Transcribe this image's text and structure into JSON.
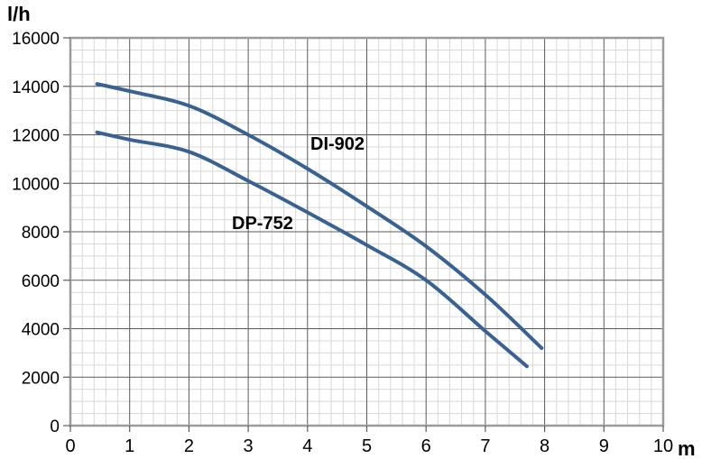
{
  "chart_data": {
    "type": "line",
    "title": "",
    "ylabel": "l/h",
    "xlabel": "m",
    "xlim": [
      0,
      10
    ],
    "ylim": [
      0,
      16000
    ],
    "x_ticks": [
      0,
      1,
      2,
      3,
      4,
      5,
      6,
      7,
      8,
      9,
      10
    ],
    "y_ticks": [
      0,
      2000,
      4000,
      6000,
      8000,
      10000,
      12000,
      14000,
      16000
    ],
    "x_minor_step": 0.2,
    "y_minor_step": 500,
    "grid": true,
    "legend_position": "inline-labels",
    "series": [
      {
        "name": "DI-902",
        "color": "#3a6291",
        "points": [
          [
            0.45,
            14100
          ],
          [
            1,
            13800
          ],
          [
            2,
            13200
          ],
          [
            3,
            12000
          ],
          [
            4,
            10600
          ],
          [
            5,
            9050
          ],
          [
            6,
            7400
          ],
          [
            7,
            5400
          ],
          [
            7.95,
            3200
          ]
        ]
      },
      {
        "name": "DP-752",
        "color": "#3a6291",
        "points": [
          [
            0.45,
            12100
          ],
          [
            1,
            11800
          ],
          [
            2,
            11300
          ],
          [
            3,
            10100
          ],
          [
            4,
            8800
          ],
          [
            5,
            7450
          ],
          [
            6,
            6000
          ],
          [
            7,
            3900
          ],
          [
            7.7,
            2450
          ]
        ]
      }
    ],
    "colors": {
      "curve": "#3a6291",
      "major_grid": "#5a5a5a",
      "minor_grid": "#d8d8d8",
      "border": "#9b9b9b",
      "tick": "#5a5a5a",
      "text": "#000000"
    }
  }
}
